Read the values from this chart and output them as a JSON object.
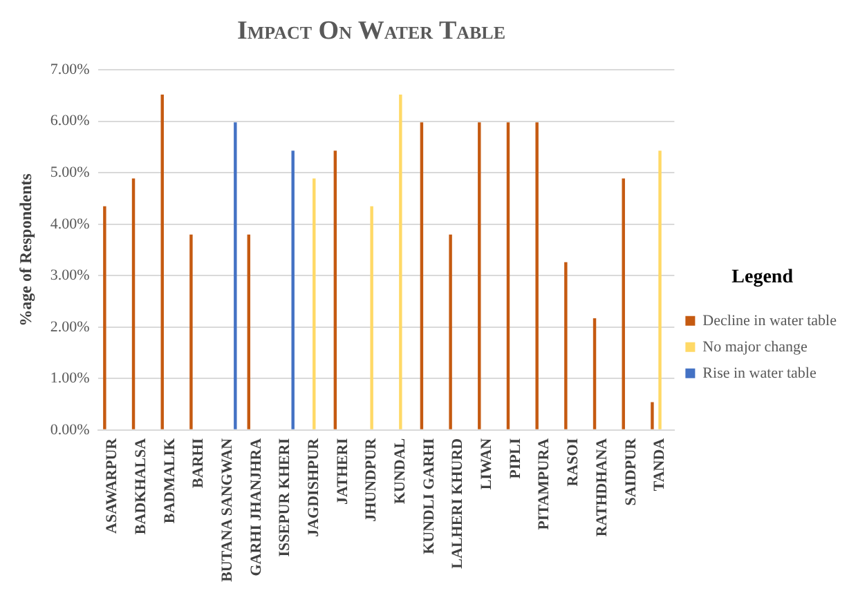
{
  "chart_data": {
    "type": "bar",
    "title": "Impact On Water Table",
    "ylabel": "%age of Respondents",
    "legend_title": "Legend",
    "categories": [
      "ASAWARPUR",
      "BADKHALSA",
      "BADMALIK",
      "BARHI",
      "BUTANA SANGWAN",
      "GARHI JHANJHRA",
      "ISSEPUR KHERI",
      "JAGDISHPUR",
      "JATHERI",
      "JHUNDPUR",
      "KUNDAL",
      "KUNDLI GARHI",
      "LALHERI KHURD",
      "LIWAN",
      "PIPLI",
      "PITAMPURA",
      "RASOI",
      "RATHDHANA",
      "SAIDPUR",
      "TANDA"
    ],
    "series": [
      {
        "name": "Decline in water table",
        "color": "#c55a11",
        "values": [
          4.35,
          4.89,
          6.52,
          3.8,
          null,
          3.8,
          null,
          null,
          5.43,
          null,
          null,
          5.98,
          3.8,
          5.98,
          5.98,
          5.98,
          3.26,
          2.17,
          4.89,
          0.54
        ]
      },
      {
        "name": "No major change",
        "color": "#ffd966",
        "values": [
          null,
          null,
          null,
          null,
          null,
          null,
          null,
          4.89,
          null,
          4.35,
          6.52,
          null,
          null,
          null,
          null,
          null,
          null,
          null,
          null,
          5.43
        ]
      },
      {
        "name": "Rise in water table",
        "color": "#4472c4",
        "values": [
          null,
          null,
          null,
          null,
          5.98,
          null,
          5.43,
          null,
          null,
          null,
          null,
          null,
          null,
          null,
          null,
          null,
          null,
          null,
          null,
          null
        ]
      }
    ],
    "ylim": [
      0,
      7
    ],
    "yticks": [
      {
        "value": 0,
        "label": "0.00%"
      },
      {
        "value": 1,
        "label": "1.00%"
      },
      {
        "value": 2,
        "label": "2.00%"
      },
      {
        "value": 3,
        "label": "3.00%"
      },
      {
        "value": 4,
        "label": "4.00%"
      },
      {
        "value": 5,
        "label": "5.00%"
      },
      {
        "value": 6,
        "label": "6.00%"
      },
      {
        "value": 7,
        "label": "7.00%"
      }
    ],
    "grid": "y",
    "legend": "right"
  }
}
